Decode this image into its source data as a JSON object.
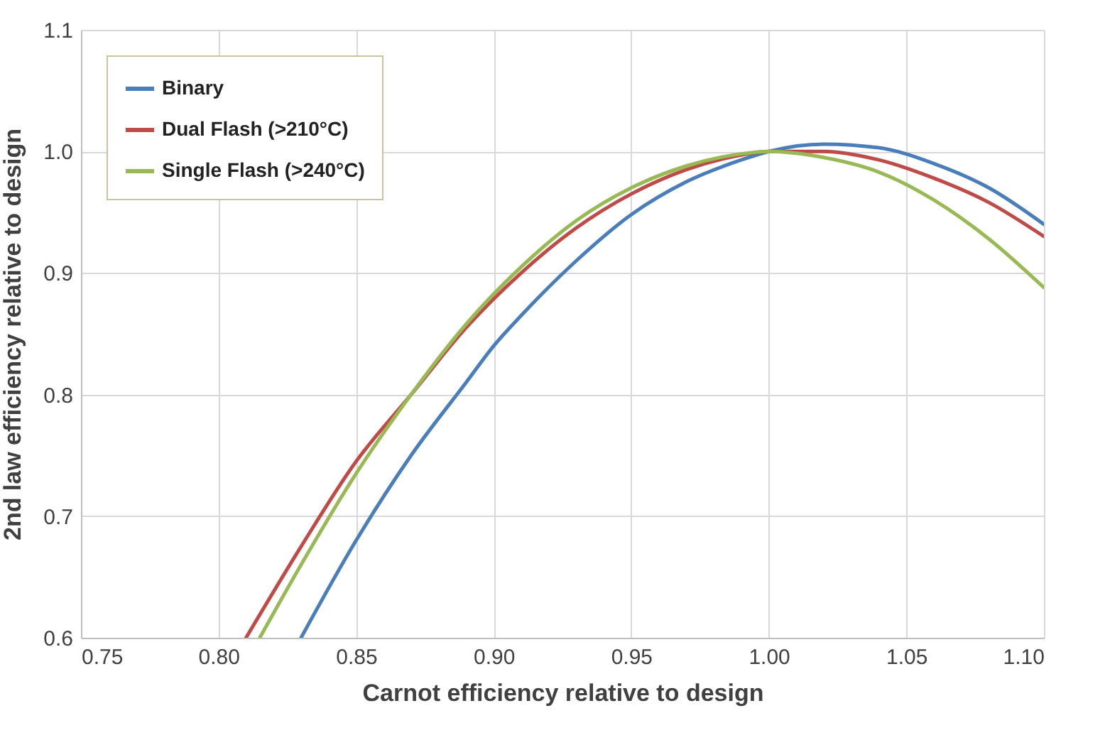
{
  "chart_data": {
    "type": "line",
    "xlabel": "Carnot efficiency relative to design",
    "ylabel": "2nd law efficiency relative to design",
    "xlim": [
      0.75,
      1.1
    ],
    "ylim": [
      0.6,
      1.1
    ],
    "xticks": [
      {
        "value": 0.75,
        "label": "0.75"
      },
      {
        "value": 0.8,
        "label": "0.80"
      },
      {
        "value": 0.85,
        "label": "0.85"
      },
      {
        "value": 0.9,
        "label": "0.90"
      },
      {
        "value": 0.95,
        "label": "0.95"
      },
      {
        "value": 1.0,
        "label": "1.00"
      },
      {
        "value": 1.05,
        "label": "1.05"
      },
      {
        "value": 1.1,
        "label": "1.10"
      }
    ],
    "yticks": [
      0.6,
      0.7,
      0.8,
      0.9,
      {
        "value": 1.0,
        "label": "1.0"
      },
      1.1
    ],
    "grid": true,
    "legend": "top left",
    "marker": "none",
    "line_style": "solid",
    "series": [
      {
        "name": "Binary",
        "color": "#4a7ebb",
        "x": [
          0.83,
          0.85,
          0.87,
          0.89,
          0.9,
          0.91,
          0.93,
          0.95,
          0.97,
          0.99,
          1.0,
          1.02,
          1.04,
          1.06,
          1.08,
          1.1
        ],
        "values": [
          0.6,
          0.68,
          0.75,
          0.81,
          0.84,
          0.865,
          0.91,
          0.948,
          0.975,
          0.993,
          1.0,
          1.006,
          1.003,
          0.99,
          0.97,
          0.94
        ]
      },
      {
        "name": "Dual Flash (>210°C)",
        "color": "#be4b48",
        "x": [
          0.81,
          0.83,
          0.85,
          0.87,
          0.89,
          0.91,
          0.93,
          0.95,
          0.97,
          0.99,
          1.0,
          1.02,
          1.04,
          1.06,
          1.08,
          1.1
        ],
        "values": [
          0.6,
          0.675,
          0.745,
          0.8,
          0.855,
          0.9,
          0.937,
          0.965,
          0.985,
          0.997,
          1.0,
          1.0,
          0.993,
          0.978,
          0.958,
          0.93
        ]
      },
      {
        "name": "Single Flash (>240°C)",
        "color": "#98b954",
        "x": [
          0.815,
          0.83,
          0.85,
          0.87,
          0.89,
          0.91,
          0.93,
          0.95,
          0.97,
          0.99,
          1.0,
          1.02,
          1.04,
          1.06,
          1.08,
          1.1
        ],
        "values": [
          0.6,
          0.66,
          0.735,
          0.8,
          0.858,
          0.905,
          0.943,
          0.97,
          0.988,
          0.998,
          1.0,
          0.995,
          0.983,
          0.96,
          0.928,
          0.888
        ]
      }
    ]
  }
}
